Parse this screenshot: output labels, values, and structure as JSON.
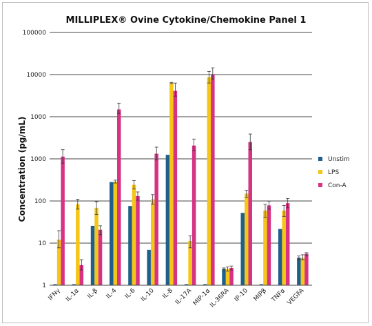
{
  "chart_data": {
    "type": "bar",
    "title": "MILLIPLEX® Ovine Cytokine/Chemokine Panel 1",
    "xlabel": "",
    "ylabel": "Concentration (pg/mL)",
    "y_scale": "log",
    "ylim": [
      1,
      100000
    ],
    "y_tick_labels": [
      "1",
      "10",
      "100",
      "1000",
      "1000",
      "10000",
      "100000"
    ],
    "grid": true,
    "legend_position": "right",
    "categories": [
      "IFNγ",
      "IL-1α",
      "IL-β",
      "IL-4",
      "IL-6",
      "IL-10",
      "IL-8",
      "IL-17A",
      "MIP-1α",
      "IL-36RA",
      "IP-10",
      "MIPβ",
      "TNFα",
      "VEGFA"
    ],
    "series": [
      {
        "name": "Unstim",
        "color": "#1f5f8b",
        "values": [
          1.05,
          1.05,
          15,
          110,
          37,
          5,
          380,
          1.05,
          1.05,
          2.1,
          27,
          1.05,
          13,
          3.5
        ],
        "errors": [
          null,
          null,
          null,
          null,
          null,
          null,
          null,
          null,
          null,
          [
            2.0,
            2.2
          ],
          null,
          null,
          null,
          [
            3.2,
            3.8
          ]
        ]
      },
      {
        "name": "LPS",
        "color": "#f5c518",
        "values": [
          8,
          40,
          34,
          112,
          97,
          50,
          10000,
          7.5,
          13000,
          2.1,
          65,
          30,
          30,
          3.5
        ],
        "errors": [
          [
            5.5,
            12
          ],
          [
            32,
            50
          ],
          [
            25,
            45
          ],
          [
            105,
            120
          ],
          [
            80,
            118
          ],
          [
            40,
            62
          ],
          [
            9800,
            10300
          ],
          [
            5.5,
            9.5
          ],
          [
            10000,
            17000
          ],
          [
            1.9,
            2.3
          ],
          [
            55,
            75
          ],
          [
            22,
            40
          ],
          [
            23,
            38
          ],
          [
            3.2,
            4.0
          ]
        ]
      },
      {
        "name": "Con-A",
        "color": "#d63384",
        "values": [
          350,
          2.5,
          12.5,
          3000,
          58,
          400,
          7000,
          580,
          15000,
          2.2,
          680,
          38,
          42,
          4.2
        ],
        "errors": [
          [
            260,
            480
          ],
          [
            2.0,
            3.2
          ],
          [
            10,
            15
          ],
          [
            2500,
            4000
          ],
          [
            48,
            70
          ],
          [
            300,
            540
          ],
          [
            5500,
            10000
          ],
          [
            460,
            780
          ],
          [
            12000,
            20000
          ],
          [
            2.0,
            2.4
          ],
          [
            480,
            980
          ],
          [
            32,
            46
          ],
          [
            34,
            52
          ],
          [
            3.8,
            4.4
          ]
        ]
      }
    ]
  }
}
